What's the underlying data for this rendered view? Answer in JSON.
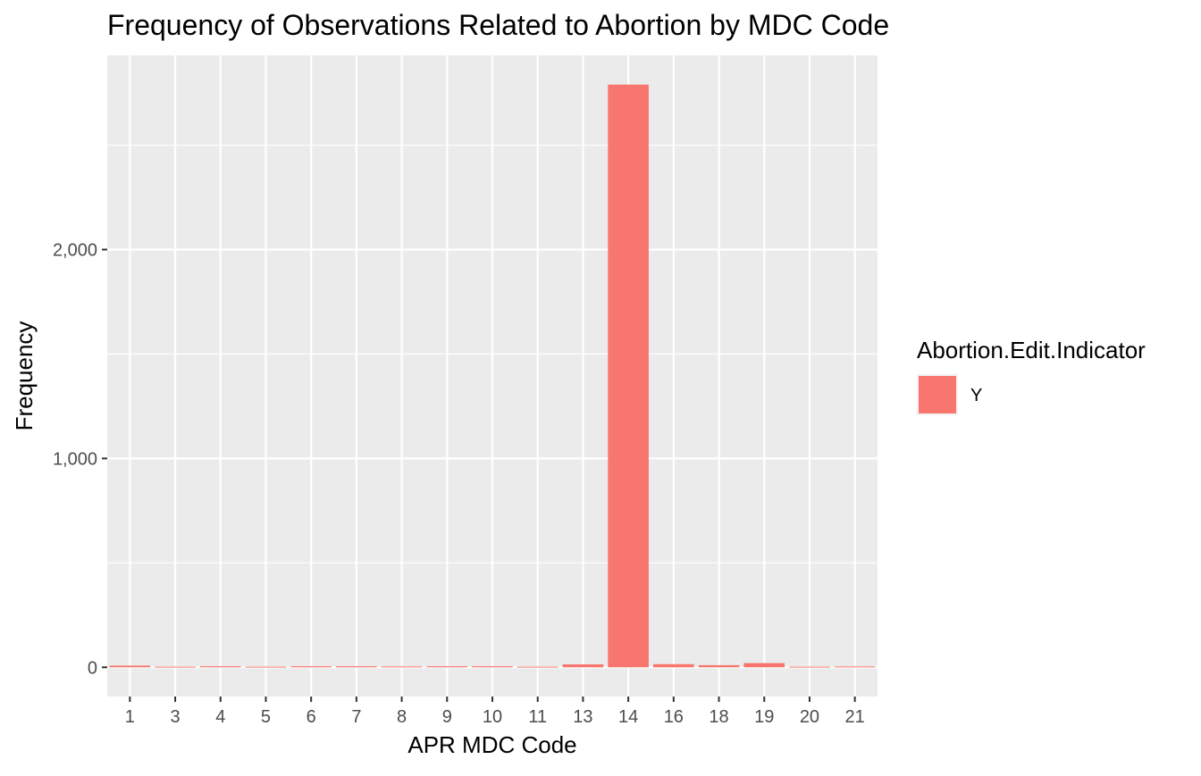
{
  "chart_data": {
    "type": "bar",
    "title": "Frequency of Observations Related to Abortion by MDC Code",
    "xlabel": "APR MDC Code",
    "ylabel": "Frequency",
    "categories": [
      "1",
      "3",
      "4",
      "5",
      "6",
      "7",
      "8",
      "9",
      "10",
      "11",
      "13",
      "14",
      "16",
      "18",
      "19",
      "20",
      "21"
    ],
    "series": [
      {
        "name": "Y",
        "values": [
          8,
          3,
          5,
          3,
          5,
          5,
          4,
          5,
          5,
          3,
          14,
          2790,
          15,
          10,
          20,
          3,
          4
        ]
      }
    ],
    "y_ticks": [
      0,
      1000,
      2000
    ],
    "y_tick_labels": [
      "0",
      "1,000",
      "2,000"
    ],
    "y_minor_ticks": [
      500,
      1500,
      2500
    ],
    "ylim": [
      -140,
      2930
    ],
    "grid": true,
    "legend": {
      "title": "Abortion.Edit.Indicator",
      "position": "right",
      "entries": [
        {
          "label": "Y",
          "color": "#F8766D"
        }
      ]
    },
    "colors": {
      "panel_background": "#EBEBEB",
      "grid": "#FFFFFF",
      "bar": "#F8766D",
      "tick_text": "#4D4D4D",
      "axis_title": "#000000"
    }
  }
}
